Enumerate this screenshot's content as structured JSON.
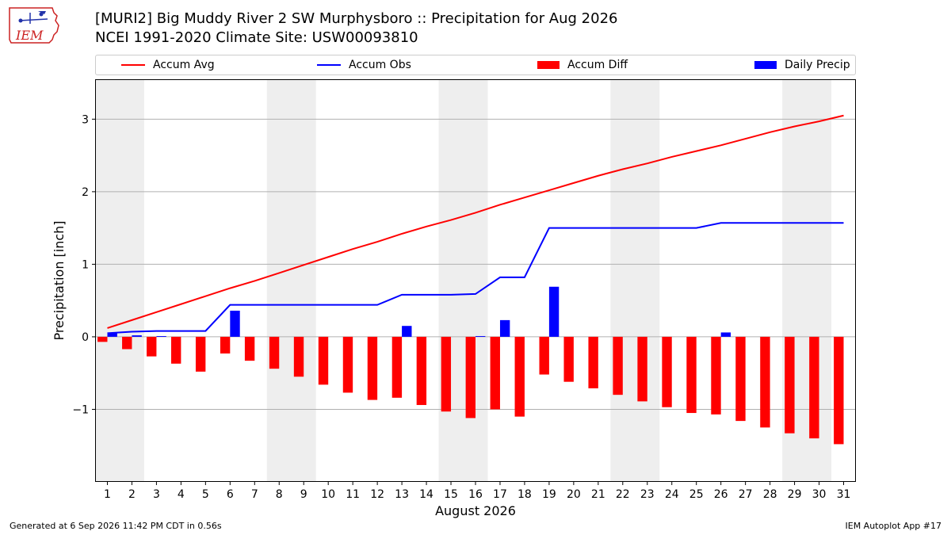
{
  "header": {
    "title_line1": "[MURI2] Big Muddy River 2 SW Murphysboro :: Precipitation for Aug 2026",
    "title_line2": "NCEI 1991-2020 Climate Site: USW00093810",
    "logo_text": "IEM"
  },
  "legend": {
    "accum_avg": "Accum Avg",
    "accum_obs": "Accum Obs",
    "accum_diff": "Accum Diff",
    "daily_precip": "Daily Precip"
  },
  "footer": {
    "left": "Generated at 6 Sep 2026 11:42 PM CDT in 0.56s",
    "right": "IEM Autoplot App #17"
  },
  "colors": {
    "avg": "#ff0000",
    "obs": "#0000ff",
    "diff": "#ff0000",
    "daily": "#0000ff",
    "weekend_shade": "#eeeeee"
  },
  "chart_data": {
    "type": "bar",
    "xlabel": "August 2026",
    "ylabel": "Precipitation [inch]",
    "ylim": [
      -2.0,
      3.55
    ],
    "yticks": [
      -1,
      0,
      1,
      2,
      3
    ],
    "ytick_labels": [
      "−1",
      "0",
      "1",
      "2",
      "3"
    ],
    "grid": "horizontal",
    "legend_position": "top",
    "x": [
      1,
      2,
      3,
      4,
      5,
      6,
      7,
      8,
      9,
      10,
      11,
      12,
      13,
      14,
      15,
      16,
      17,
      18,
      19,
      20,
      21,
      22,
      23,
      24,
      25,
      26,
      27,
      28,
      29,
      30,
      31
    ],
    "shaded_days": [
      [
        1,
        2
      ],
      [
        8,
        9
      ],
      [
        15,
        16
      ],
      [
        22,
        23
      ],
      [
        29,
        30
      ]
    ],
    "series": [
      {
        "name": "Accum Avg",
        "type": "line",
        "values": [
          0.12,
          0.23,
          0.34,
          0.45,
          0.56,
          0.67,
          0.77,
          0.88,
          0.99,
          1.1,
          1.21,
          1.31,
          1.42,
          1.52,
          1.61,
          1.71,
          1.82,
          1.92,
          2.02,
          2.12,
          2.22,
          2.31,
          2.39,
          2.48,
          2.56,
          2.64,
          2.73,
          2.82,
          2.9,
          2.97,
          3.05
        ]
      },
      {
        "name": "Accum Obs",
        "type": "line",
        "values": [
          0.05,
          0.07,
          0.08,
          0.08,
          0.08,
          0.44,
          0.44,
          0.44,
          0.44,
          0.44,
          0.44,
          0.44,
          0.58,
          0.58,
          0.58,
          0.59,
          0.82,
          0.82,
          1.5,
          1.5,
          1.5,
          1.5,
          1.5,
          1.5,
          1.5,
          1.57,
          1.57,
          1.57,
          1.57,
          1.57,
          1.57
        ]
      },
      {
        "name": "Accum Diff",
        "type": "bar",
        "values": [
          -0.07,
          -0.17,
          -0.27,
          -0.37,
          -0.48,
          -0.23,
          -0.33,
          -0.44,
          -0.55,
          -0.66,
          -0.77,
          -0.87,
          -0.84,
          -0.94,
          -1.03,
          -1.12,
          -1.0,
          -1.1,
          -0.52,
          -0.62,
          -0.71,
          -0.8,
          -0.89,
          -0.97,
          -1.05,
          -1.07,
          -1.16,
          -1.25,
          -1.33,
          -1.4,
          -1.48
        ]
      },
      {
        "name": "Daily Precip",
        "type": "bar",
        "values": [
          0.05,
          0.02,
          0.01,
          0,
          0,
          0.36,
          0,
          0,
          0,
          0,
          0,
          0,
          0.15,
          0,
          0,
          0.01,
          0.23,
          0,
          0.69,
          0,
          0,
          0,
          0,
          0,
          0,
          0.06,
          0,
          0,
          0,
          0,
          0
        ]
      }
    ]
  }
}
